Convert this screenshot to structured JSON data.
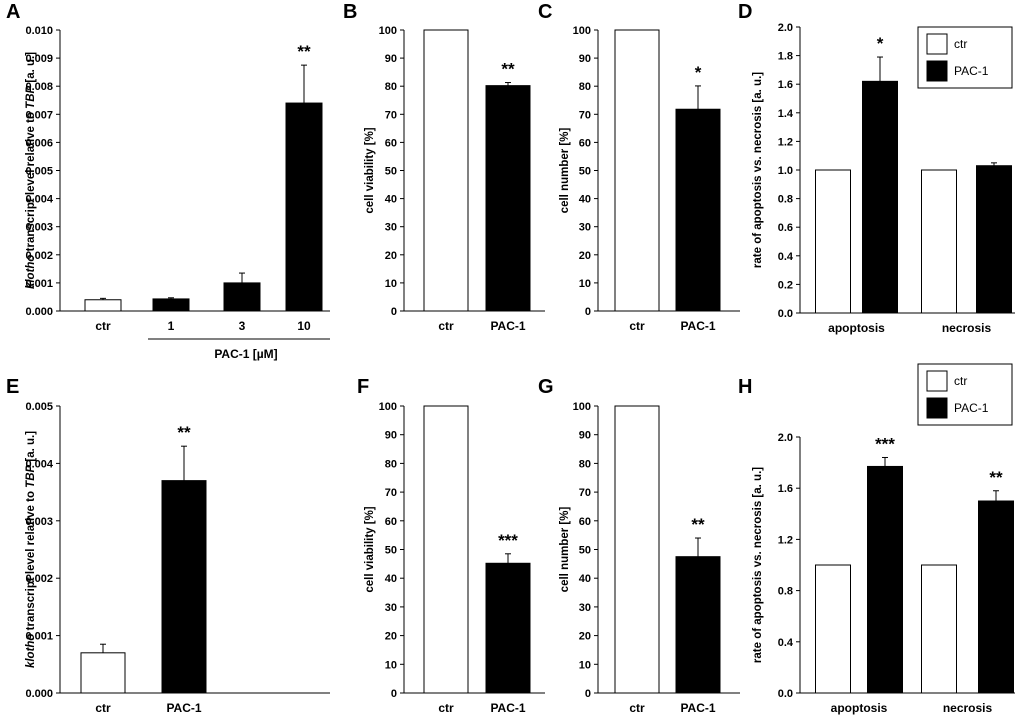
{
  "chart_data": [
    {
      "panel": "A",
      "type": "bar",
      "ylabel_italic": "klotho",
      "ylabel_mid": " transcript level relative to ",
      "ylabel_italic2": "TBP",
      "ylabel_end": " [a. u.]",
      "ylim": [
        0,
        0.01
      ],
      "yticks": [
        "0.000",
        "0.001",
        "0.002",
        "0.003",
        "0.004",
        "0.005",
        "0.006",
        "0.007",
        "0.008",
        "0.009",
        "0.010"
      ],
      "categories": [
        "ctr",
        "1",
        "3",
        "10"
      ],
      "values": [
        0.0004,
        0.00043,
        0.001,
        0.0074
      ],
      "errors": [
        5e-05,
        4e-05,
        0.00035,
        0.00135
      ],
      "fills": [
        "#ffffff",
        "#000000",
        "#000000",
        "#000000"
      ],
      "stars": [
        "",
        "",
        "",
        "**"
      ],
      "group_label": "PAC-1 [µM]"
    },
    {
      "panel": "B",
      "type": "bar",
      "ylabel": "cell viability [%]",
      "ylim": [
        0,
        100
      ],
      "yticks": [
        "0",
        "10",
        "20",
        "30",
        "40",
        "50",
        "60",
        "70",
        "80",
        "90",
        "100"
      ],
      "categories": [
        "ctr",
        "PAC-1"
      ],
      "values": [
        100,
        80.2
      ],
      "errors": [
        0,
        1.1
      ],
      "fills": [
        "#ffffff",
        "#000000"
      ],
      "stars": [
        "",
        "**"
      ]
    },
    {
      "panel": "C",
      "type": "bar",
      "ylabel": "cell number [%]",
      "ylim": [
        0,
        100
      ],
      "yticks": [
        "0",
        "10",
        "20",
        "30",
        "40",
        "50",
        "60",
        "70",
        "80",
        "90",
        "100"
      ],
      "categories": [
        "ctr",
        "PAC-1"
      ],
      "values": [
        100,
        71.8
      ],
      "errors": [
        0,
        8.3
      ],
      "fills": [
        "#ffffff",
        "#000000"
      ],
      "stars": [
        "",
        "*"
      ]
    },
    {
      "panel": "D",
      "type": "bar",
      "ylabel": "rate of apoptosis vs. necrosis [a. u.]",
      "ylim": [
        0,
        2.0
      ],
      "yticks": [
        "0.0",
        "0.2",
        "0.4",
        "0.6",
        "0.8",
        "1.0",
        "1.2",
        "1.4",
        "1.6",
        "1.8",
        "2.0"
      ],
      "categories": [
        "apoptosis",
        "necrosis"
      ],
      "series": [
        {
          "name": "ctr",
          "color": "#ffffff",
          "values": [
            1.0,
            1.0
          ],
          "errors": [
            0,
            0
          ],
          "stars": [
            "",
            ""
          ]
        },
        {
          "name": "PAC-1",
          "color": "#000000",
          "values": [
            1.62,
            1.03
          ],
          "errors": [
            0.17,
            0.02
          ],
          "stars": [
            "*",
            ""
          ]
        }
      ]
    },
    {
      "panel": "E",
      "type": "bar",
      "ylabel_italic": "klotho",
      "ylabel_mid": " transcript level relative to ",
      "ylabel_italic2": "TBP",
      "ylabel_end": " [a. u.]",
      "ylim": [
        0,
        0.005
      ],
      "yticks": [
        "0.000",
        "0.001",
        "0.002",
        "0.003",
        "0.004",
        "0.005"
      ],
      "categories": [
        "ctr",
        "PAC-1"
      ],
      "values": [
        0.0007,
        0.0037
      ],
      "errors": [
        0.00015,
        0.0006
      ],
      "fills": [
        "#ffffff",
        "#000000"
      ],
      "stars": [
        "",
        "**"
      ]
    },
    {
      "panel": "F",
      "type": "bar",
      "ylabel": "cell viability [%]",
      "ylim": [
        0,
        100
      ],
      "yticks": [
        "0",
        "10",
        "20",
        "30",
        "40",
        "50",
        "60",
        "70",
        "80",
        "90",
        "100"
      ],
      "categories": [
        "ctr",
        "PAC-1"
      ],
      "values": [
        100,
        45.2
      ],
      "errors": [
        0,
        3.3
      ],
      "fills": [
        "#ffffff",
        "#000000"
      ],
      "stars": [
        "",
        "***"
      ]
    },
    {
      "panel": "G",
      "type": "bar",
      "ylabel": "cell number [%]",
      "ylim": [
        0,
        100
      ],
      "yticks": [
        "0",
        "10",
        "20",
        "30",
        "40",
        "50",
        "60",
        "70",
        "80",
        "90",
        "100"
      ],
      "categories": [
        "ctr",
        "PAC-1"
      ],
      "values": [
        100,
        47.5
      ],
      "errors": [
        0,
        6.5
      ],
      "fills": [
        "#ffffff",
        "#000000"
      ],
      "stars": [
        "",
        "**"
      ]
    },
    {
      "panel": "H",
      "type": "bar",
      "ylabel": "rate of apoptosis vs. necrosis [a. u.]",
      "ylim": [
        0,
        2.0
      ],
      "yticks": [
        "0.0",
        "0.4",
        "0.8",
        "1.2",
        "1.6",
        "2.0"
      ],
      "categories": [
        "apoptosis",
        "necrosis"
      ],
      "series": [
        {
          "name": "ctr",
          "color": "#ffffff",
          "values": [
            1.0,
            1.0
          ],
          "errors": [
            0,
            0
          ],
          "stars": [
            "",
            ""
          ]
        },
        {
          "name": "PAC-1",
          "color": "#000000",
          "values": [
            1.77,
            1.5
          ],
          "errors": [
            0.07,
            0.08
          ],
          "stars": [
            "***",
            "**"
          ]
        }
      ]
    }
  ]
}
